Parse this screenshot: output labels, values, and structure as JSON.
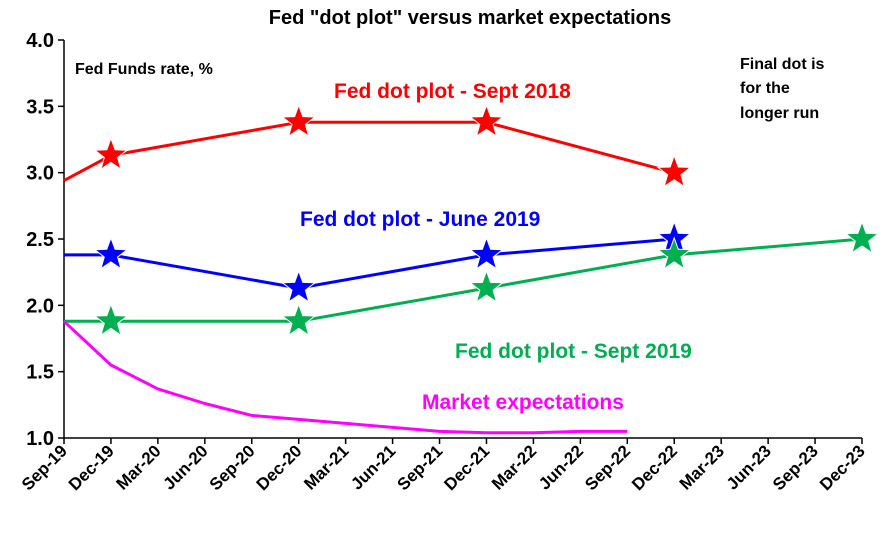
{
  "chart_data": {
    "type": "line",
    "title": "Fed \"dot plot\" versus market expectations",
    "ylabel": "Fed Funds rate, %",
    "ylim": [
      1.0,
      4.0
    ],
    "yticks": [
      "1.0",
      "1.5",
      "2.0",
      "2.5",
      "3.0",
      "3.5",
      "4.0"
    ],
    "categories": [
      "Sep-19",
      "Dec-19",
      "Mar-20",
      "Jun-20",
      "Sep-20",
      "Dec-20",
      "Mar-21",
      "Jun-21",
      "Sep-21",
      "Dec-21",
      "Mar-22",
      "Jun-22",
      "Sep-22",
      "Dec-22",
      "Mar-23",
      "Jun-23",
      "Sep-23",
      "Dec-23"
    ],
    "grid": false,
    "annotation": [
      "Final dot is",
      "for the",
      "longer run"
    ],
    "series": [
      {
        "name": "Fed dot plot - Sept 2018",
        "color": "#ff0000",
        "points": [
          {
            "x": 0,
            "y": 2.94,
            "marker": false
          },
          {
            "x": 1,
            "y": 3.13,
            "marker": true
          },
          {
            "x": 5,
            "y": 3.38,
            "marker": true
          },
          {
            "x": 9,
            "y": 3.38,
            "marker": true
          },
          {
            "x": 13,
            "y": 3.0,
            "marker": true
          }
        ]
      },
      {
        "name": "Fed dot plot - June 2019",
        "color": "#0000ff",
        "points": [
          {
            "x": 0,
            "y": 2.38,
            "marker": false
          },
          {
            "x": 1,
            "y": 2.38,
            "marker": true
          },
          {
            "x": 5,
            "y": 2.13,
            "marker": true
          },
          {
            "x": 9,
            "y": 2.38,
            "marker": true
          },
          {
            "x": 13,
            "y": 2.5,
            "marker": true
          }
        ]
      },
      {
        "name": "Fed dot plot - Sept 2019",
        "color": "#00b050",
        "points": [
          {
            "x": 0,
            "y": 1.88,
            "marker": false
          },
          {
            "x": 1,
            "y": 1.88,
            "marker": true
          },
          {
            "x": 5,
            "y": 1.88,
            "marker": true
          },
          {
            "x": 9,
            "y": 2.13,
            "marker": true
          },
          {
            "x": 13,
            "y": 2.38,
            "marker": true
          },
          {
            "x": 17,
            "y": 2.5,
            "marker": true
          }
        ]
      },
      {
        "name": "Market expectations",
        "color": "#ff00ff",
        "points": [
          {
            "x": 0,
            "y": 1.88
          },
          {
            "x": 1,
            "y": 1.55
          },
          {
            "x": 2,
            "y": 1.37
          },
          {
            "x": 3,
            "y": 1.26
          },
          {
            "x": 4,
            "y": 1.17
          },
          {
            "x": 5,
            "y": 1.14
          },
          {
            "x": 6,
            "y": 1.11
          },
          {
            "x": 7,
            "y": 1.08
          },
          {
            "x": 8,
            "y": 1.05
          },
          {
            "x": 9,
            "y": 1.04
          },
          {
            "x": 10,
            "y": 1.04
          },
          {
            "x": 11,
            "y": 1.05
          },
          {
            "x": 12,
            "y": 1.05
          }
        ]
      }
    ]
  }
}
